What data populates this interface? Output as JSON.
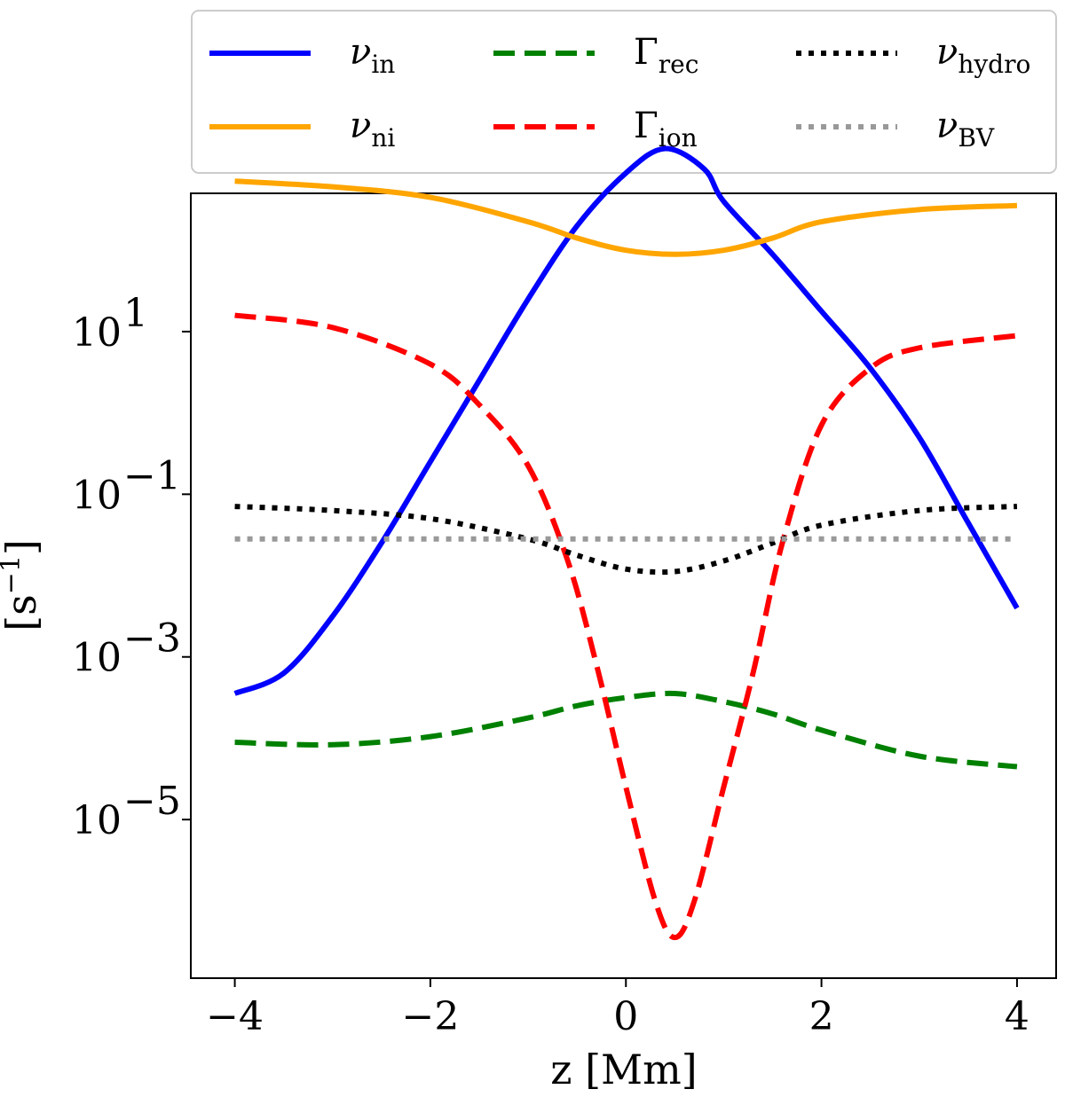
{
  "chart_data": {
    "type": "line",
    "title": "",
    "xlabel": "z [Mm]",
    "ylabel_base": "[s",
    "ylabel_exp": "−1",
    "ylabel_close": "]",
    "ylabel": "[s^-1]",
    "xlim": [
      -4.45,
      4.4
    ],
    "ylim_log10": [
      -6.95,
      2.7
    ],
    "yscale": "log",
    "x_ticks": [
      {
        "value": -4,
        "label": "−4"
      },
      {
        "value": -2,
        "label": "−2"
      },
      {
        "value": 0,
        "label": "0"
      },
      {
        "value": 2,
        "label": "2"
      },
      {
        "value": 4,
        "label": "4"
      }
    ],
    "y_ticks": [
      {
        "exp": 1,
        "base": "10",
        "sup": "1"
      },
      {
        "exp": -1,
        "base": "10",
        "sup": "−1"
      },
      {
        "exp": -3,
        "base": "10",
        "sup": "−3"
      },
      {
        "exp": -5,
        "base": "10",
        "sup": "−5"
      }
    ],
    "legend_position": "top (above plot, 3 columns)",
    "series": [
      {
        "name": "nu_in",
        "symbol": "ν",
        "sub": "in",
        "color": "#0000ff",
        "style": "solid",
        "x": [
          -4.0,
          -3.5,
          -3.0,
          -2.5,
          -2.0,
          -1.5,
          -1.0,
          -0.5,
          0.0,
          0.4,
          0.8,
          1.0,
          1.5,
          2.0,
          2.5,
          3.0,
          3.5,
          4.0
        ],
        "log10_y": [
          -3.45,
          -3.2,
          -2.5,
          -1.6,
          -0.6,
          0.4,
          1.4,
          2.3,
          2.95,
          3.25,
          3.0,
          2.6,
          1.95,
          1.25,
          0.55,
          -0.3,
          -1.35,
          -2.4
        ]
      },
      {
        "name": "nu_ni",
        "symbol": "ν",
        "sub": "ni",
        "color": "#ffa500",
        "style": "solid",
        "x": [
          -4.0,
          -3.0,
          -2.0,
          -1.0,
          -0.5,
          0.0,
          0.5,
          1.0,
          1.5,
          2.0,
          3.0,
          4.0
        ],
        "log10_y": [
          2.85,
          2.78,
          2.65,
          2.35,
          2.15,
          2.0,
          1.95,
          2.0,
          2.15,
          2.35,
          2.5,
          2.55
        ]
      },
      {
        "name": "Gamma_rec",
        "symbol": "Γ",
        "sub": "rec",
        "color": "#008000",
        "style": "dashed",
        "x": [
          -4.0,
          -3.0,
          -2.0,
          -1.0,
          -0.5,
          0.0,
          0.5,
          1.0,
          1.5,
          2.0,
          3.0,
          4.0
        ],
        "log10_y": [
          -4.05,
          -4.08,
          -3.98,
          -3.75,
          -3.6,
          -3.5,
          -3.45,
          -3.55,
          -3.7,
          -3.9,
          -4.22,
          -4.35
        ]
      },
      {
        "name": "Gamma_ion",
        "symbol": "Γ",
        "sub": "ion",
        "color": "#ff0000",
        "style": "dashed",
        "x": [
          -4.0,
          -3.0,
          -2.0,
          -1.5,
          -1.0,
          -0.6,
          -0.3,
          0.0,
          0.3,
          0.5,
          0.7,
          1.0,
          1.3,
          1.6,
          2.0,
          2.5,
          3.0,
          4.0
        ],
        "log10_y": [
          1.2,
          1.05,
          0.6,
          0.1,
          -0.65,
          -1.8,
          -3.1,
          -4.6,
          -6.0,
          -6.45,
          -6.0,
          -4.6,
          -3.2,
          -1.6,
          -0.15,
          0.55,
          0.8,
          0.95
        ]
      },
      {
        "name": "nu_hydro",
        "symbol": "ν",
        "sub": "hydro",
        "color": "#000000",
        "style": "dotted",
        "x": [
          -4.0,
          -3.0,
          -2.0,
          -1.0,
          -0.5,
          0.0,
          0.5,
          1.0,
          1.5,
          2.0,
          3.0,
          4.0
        ],
        "log10_y": [
          -1.15,
          -1.2,
          -1.3,
          -1.55,
          -1.75,
          -1.92,
          -1.95,
          -1.82,
          -1.6,
          -1.38,
          -1.2,
          -1.15
        ]
      },
      {
        "name": "nu_BV",
        "symbol": "ν",
        "sub": "BV",
        "color": "#999999",
        "style": "dotted",
        "x": [
          -4.0,
          4.0
        ],
        "log10_y": [
          -1.55,
          -1.55
        ]
      }
    ]
  }
}
